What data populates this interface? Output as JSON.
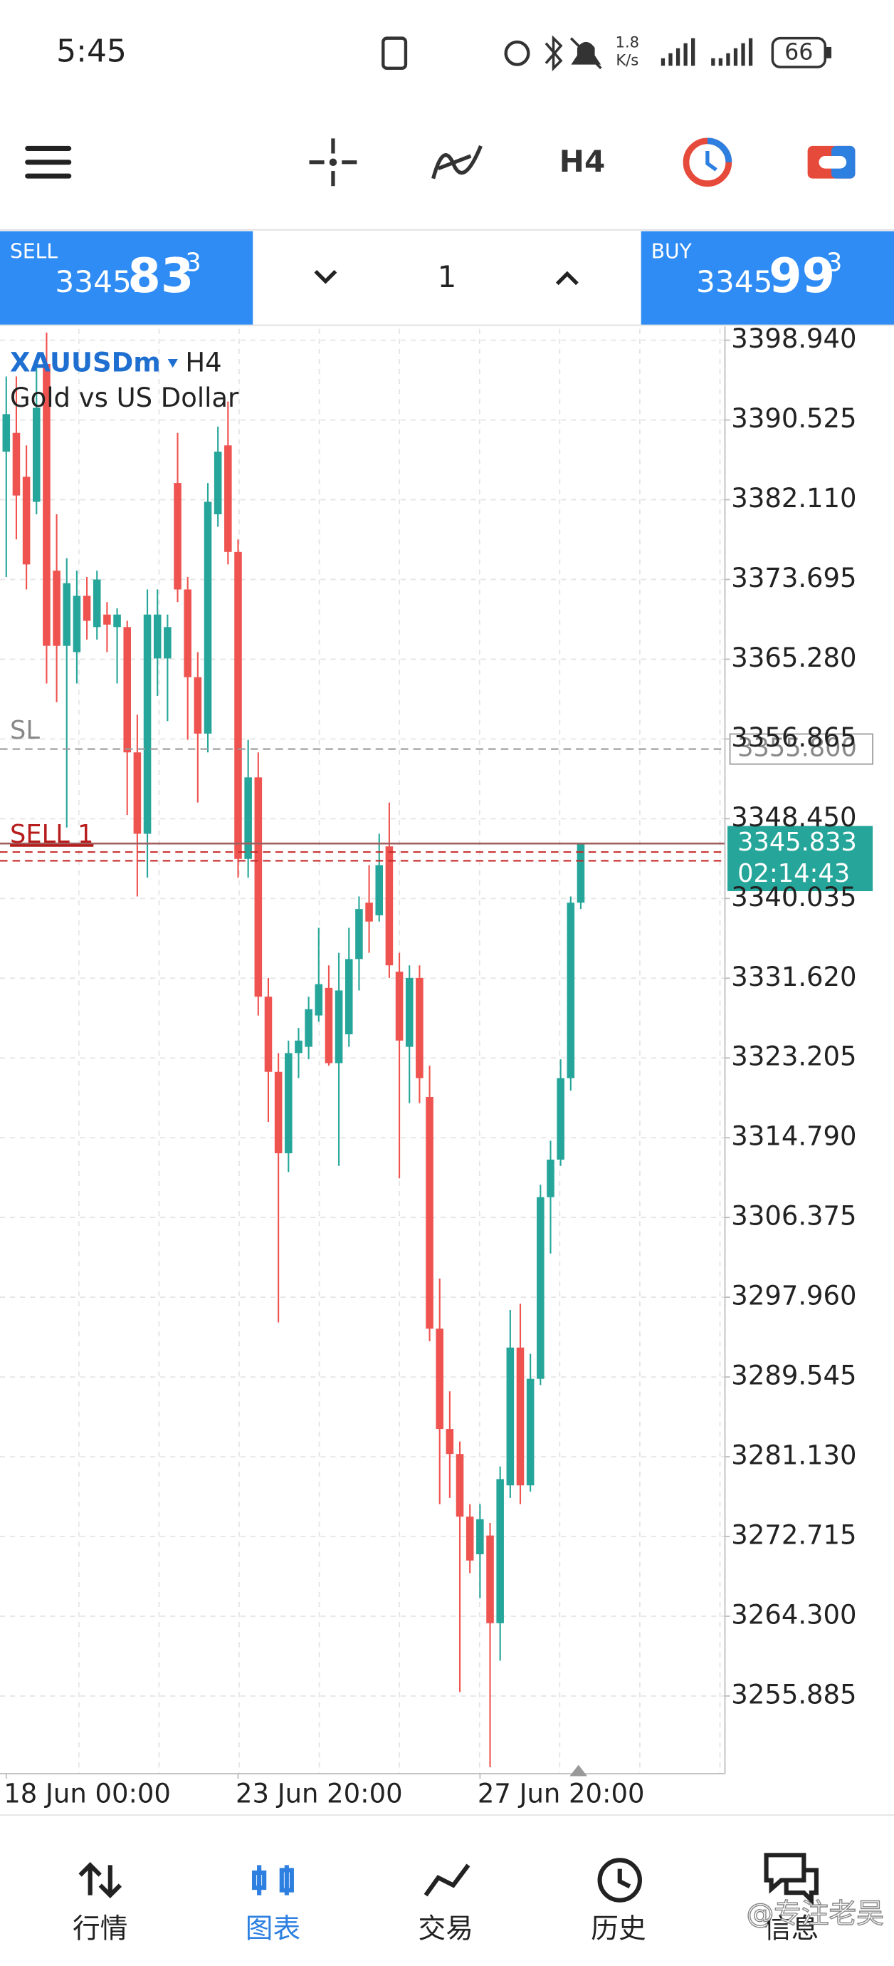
{
  "status_bar": {
    "time": "5:45",
    "speed": "1.8",
    "speed_unit": "K/s",
    "battery": "66"
  },
  "toolbar": {
    "timeframe": "H4"
  },
  "quote": {
    "sell": {
      "label": "SELL",
      "price_head": "3345.",
      "price_big": "83",
      "price_tail": "3"
    },
    "volume": "1",
    "buy": {
      "label": "BUY",
      "price_head": "3345.",
      "price_big": "99",
      "price_tail": "3"
    }
  },
  "chart_data": {
    "type": "candlestick",
    "symbol": "XAUUSDm",
    "timeframe": "H4",
    "description": "Gold vs US Dollar",
    "categories": [
      "18 Jun 00:00",
      null,
      null,
      null,
      null,
      null,
      null,
      null,
      null,
      null,
      null,
      null,
      null,
      null,
      null,
      null,
      null,
      null,
      null,
      null,
      null,
      null,
      null,
      "23 Jun 20:00",
      null,
      null,
      null,
      null,
      null,
      null,
      null,
      null,
      null,
      null,
      null,
      null,
      null,
      null,
      null,
      null,
      null,
      null,
      null,
      null,
      null,
      null,
      null,
      "27 Jun 20:00",
      null,
      null,
      null,
      null,
      null,
      null,
      null,
      null,
      null,
      null
    ],
    "open": [
      3387.18,
      3389.16,
      3384.53,
      3381.89,
      3396.43,
      3374.62,
      3366.69,
      3366.03,
      3371.97,
      3368.67,
      3369.99,
      3368.67,
      3368.67,
      3355.45,
      3346.86,
      3365.36,
      3365.36,
      3383.87,
      3372.64,
      3363.38,
      3357.43,
      3380.57,
      3387.84,
      3376.6,
      3344.21,
      3352.81,
      3329.67,
      3321.74,
      3313.15,
      3323.72,
      3324.38,
      3327.69,
      3330.6,
      3322.66,
      3325.7,
      3333.64,
      3339.59,
      3338.26,
      3345.53,
      3332.31,
      3324.38,
      3331.65,
      3319.09,
      3294.64,
      3284.06,
      3281.42,
      3274.81,
      3270.84,
      3272.82,
      3263.57,
      3278.11,
      3292.65,
      3278.11,
      3289.35,
      3308.52,
      3312.48,
      3321.08,
      3339.59
    ],
    "high": [
      3395.11,
      3395.11,
      3387.84,
      3396.43,
      3399.74,
      3380.57,
      3375.94,
      3374.62,
      3373.96,
      3374.62,
      3371.31,
      3370.65,
      3369.33,
      3359.42,
      3372.64,
      3372.64,
      3369.99,
      3389.16,
      3373.96,
      3366.03,
      3383.87,
      3389.82,
      3392.47,
      3377.92,
      3356.77,
      3355.45,
      3331.65,
      3323.72,
      3325.04,
      3326.37,
      3329.67,
      3336.94,
      3332.98,
      3334.3,
      3336.94,
      3340.25,
      3343.55,
      3346.86,
      3350.16,
      3334.3,
      3332.98,
      3332.98,
      3322.4,
      3299.93,
      3288.03,
      3282.74,
      3276.13,
      3276.13,
      3274.15,
      3280.1,
      3296.62,
      3297.28,
      3291.99,
      3309.84,
      3314.47,
      3323.06,
      3340.25,
      3345.833
    ],
    "low": [
      3373.96,
      3377.92,
      3372.64,
      3380.57,
      3362.72,
      3360.74,
      3347.52,
      3362.72,
      3367.35,
      3367.35,
      3366.03,
      3362.72,
      3348.84,
      3340.25,
      3342.23,
      3361.4,
      3358.75,
      3371.31,
      3356.77,
      3350.16,
      3355.45,
      3379.25,
      3375.28,
      3342.23,
      3342.23,
      3327.69,
      3316.45,
      3295.3,
      3311.16,
      3321.08,
      3323.06,
      3327.03,
      3322.4,
      3311.82,
      3324.38,
      3330.33,
      3334.3,
      3337.6,
      3331.65,
      3310.5,
      3318.43,
      3318.43,
      3293.32,
      3276.13,
      3276.79,
      3256.3,
      3268.86,
      3266.21,
      3248.37,
      3259.6,
      3276.79,
      3276.13,
      3277.45,
      3288.69,
      3302.57,
      3311.82,
      3319.76,
      3338.92
    ],
    "close": [
      3391.14,
      3382.55,
      3375.28,
      3391.8,
      3366.69,
      3366.69,
      3373.3,
      3371.97,
      3369.33,
      3373.69,
      3368.93,
      3369.99,
      3355.45,
      3346.86,
      3369.99,
      3369.99,
      3368.67,
      3372.64,
      3363.38,
      3357.43,
      3381.89,
      3387.18,
      3376.6,
      3344.21,
      3352.81,
      3329.67,
      3321.74,
      3313.15,
      3323.72,
      3325.04,
      3328.35,
      3330.99,
      3322.66,
      3330.33,
      3333.64,
      3338.92,
      3337.6,
      3343.55,
      3332.98,
      3325.04,
      3331.65,
      3321.08,
      3294.64,
      3284.06,
      3281.42,
      3274.81,
      3270.18,
      3274.54,
      3263.57,
      3278.77,
      3292.65,
      3278.11,
      3289.35,
      3308.52,
      3312.48,
      3321.08,
      3339.59,
      3345.833
    ],
    "up_color": "#26a69a",
    "down_color": "#ef5350",
    "ylim": [
      3247.69,
      3400.13
    ],
    "yticks": [
      {
        "value": 3398.94,
        "label": "3398.940"
      },
      3390.525,
      {
        "value": 3382.11,
        "label": "3382.110"
      },
      3373.695,
      {
        "value": 3365.28,
        "label": "3365.280"
      },
      3356.865,
      {
        "value": 3348.45,
        "label": "3348.450"
      },
      3340.035,
      {
        "value": 3331.62,
        "label": "3331.620"
      },
      3323.205,
      {
        "value": 3314.79,
        "label": "3314.790"
      },
      3306.375,
      {
        "value": 3297.96,
        "label": "3297.960"
      },
      3289.545,
      {
        "value": 3281.13,
        "label": "3281.130"
      },
      3272.715,
      {
        "value": 3264.3,
        "label": "3264.300"
      },
      3255.885
    ],
    "grid": true,
    "stop_loss": {
      "label": "SL",
      "price": {
        "value": 3355.8,
        "label": "3355.800"
      }
    },
    "order": {
      "label": "SELL 1",
      "price": 3345.2
    },
    "current": {
      "price": 3345.833,
      "countdown": "02:14:43"
    }
  },
  "nav": {
    "items": [
      "行情",
      "图表",
      "交易",
      "历史",
      "信息"
    ],
    "active": 1
  },
  "watermark": "@专注老吴"
}
